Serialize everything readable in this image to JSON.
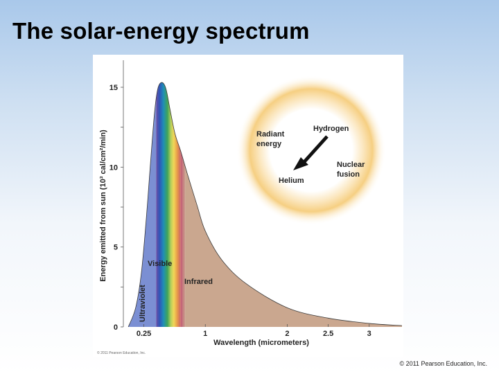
{
  "slide": {
    "title": "The solar-energy spectrum",
    "copyright": "© 2011 Pearson Education, Inc.",
    "figure_credit": "© 2011 Pearson Education, Inc."
  },
  "colors": {
    "ultraviolet": "#7b8fd3",
    "infrared": "#caa78f",
    "sun_glow": "#f6cf82"
  },
  "chart_data": {
    "type": "area",
    "xlabel": "Wavelength (micrometers)",
    "ylabel": "Energy emitted from sun (10³ cal/cm²/min)",
    "xlim": [
      0,
      3.4
    ],
    "ylim": [
      0,
      15
    ],
    "x_ticks": [
      {
        "value": 0.25,
        "label": "0.25"
      },
      {
        "value": 1,
        "label": "1"
      },
      {
        "value": 2,
        "label": "2"
      },
      {
        "value": 2.5,
        "label": "2.5"
      },
      {
        "value": 3,
        "label": "3"
      }
    ],
    "y_ticks": [
      0,
      2.5,
      5,
      7.5,
      10,
      12.5,
      15
    ],
    "y_tick_labels": [
      {
        "value": 0,
        "label": "0"
      },
      {
        "value": 5,
        "label": "5"
      },
      {
        "value": 10,
        "label": "10"
      },
      {
        "value": 15,
        "label": "15"
      }
    ],
    "curve": [
      {
        "x": 0.06,
        "y": 0
      },
      {
        "x": 0.15,
        "y": 1.2
      },
      {
        "x": 0.22,
        "y": 3.4
      },
      {
        "x": 0.28,
        "y": 6.8
      },
      {
        "x": 0.33,
        "y": 10.2
      },
      {
        "x": 0.38,
        "y": 13.4
      },
      {
        "x": 0.42,
        "y": 14.9
      },
      {
        "x": 0.47,
        "y": 15.3
      },
      {
        "x": 0.52,
        "y": 14.9
      },
      {
        "x": 0.57,
        "y": 13.6
      },
      {
        "x": 0.63,
        "y": 12.1
      },
      {
        "x": 0.7,
        "y": 11.0
      },
      {
        "x": 0.78,
        "y": 9.6
      },
      {
        "x": 0.9,
        "y": 7.6
      },
      {
        "x": 1.0,
        "y": 6.0
      },
      {
        "x": 1.2,
        "y": 4.2
      },
      {
        "x": 1.5,
        "y": 2.7
      },
      {
        "x": 2.0,
        "y": 1.2
      },
      {
        "x": 2.5,
        "y": 0.55
      },
      {
        "x": 3.0,
        "y": 0.22
      },
      {
        "x": 3.4,
        "y": 0.08
      }
    ],
    "bands": [
      {
        "name": "Ultraviolet",
        "label": "Ultraviolet",
        "x_start": 0.06,
        "x_end": 0.4
      },
      {
        "name": "Visible",
        "label": "Visible",
        "x_start": 0.4,
        "x_end": 0.7
      },
      {
        "name": "Infrared",
        "label": "Infrared",
        "x_start": 0.7,
        "x_end": 3.4
      }
    ],
    "inset": {
      "labels": {
        "radiant_energy": "Radiant\nenergy",
        "hydrogen": "Hydrogen",
        "nuclear_fusion": "Nuclear\nfusion",
        "helium": "Helium"
      }
    }
  }
}
